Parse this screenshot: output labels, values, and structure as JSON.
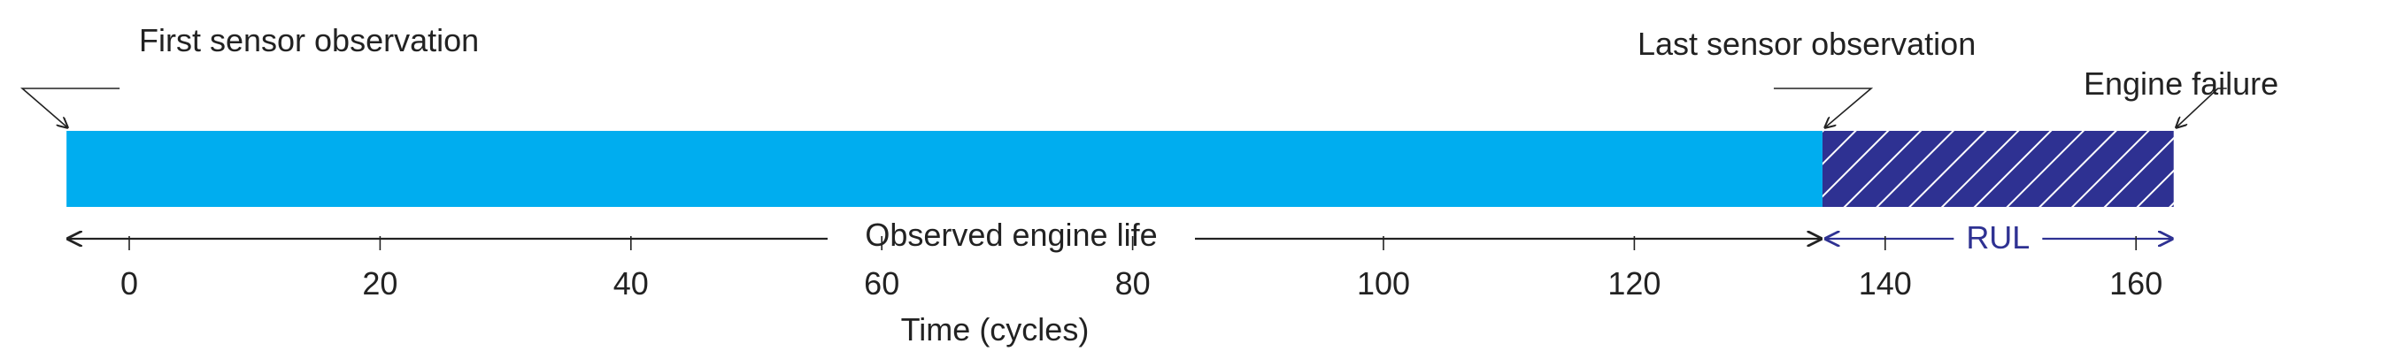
{
  "annotations": {
    "first_obs": "First sensor observation",
    "last_obs": "Last sensor observation",
    "failure": "Engine failure"
  },
  "spans": {
    "observed": "Observed engine life",
    "rul": "RUL"
  },
  "axis": {
    "xlabel": "Time (cycles)",
    "ticks": [
      "0",
      "20",
      "40",
      "60",
      "80",
      "100",
      "120",
      "140",
      "160"
    ],
    "range": [
      -5,
      163
    ]
  },
  "timeline": {
    "start": -5,
    "last_observation": 135,
    "failure": 163
  },
  "colors": {
    "observed_bar": "#00adef",
    "rul_fill": "#2e3192",
    "rul_hatch": "#ffffff",
    "arrows": "#222222"
  }
}
